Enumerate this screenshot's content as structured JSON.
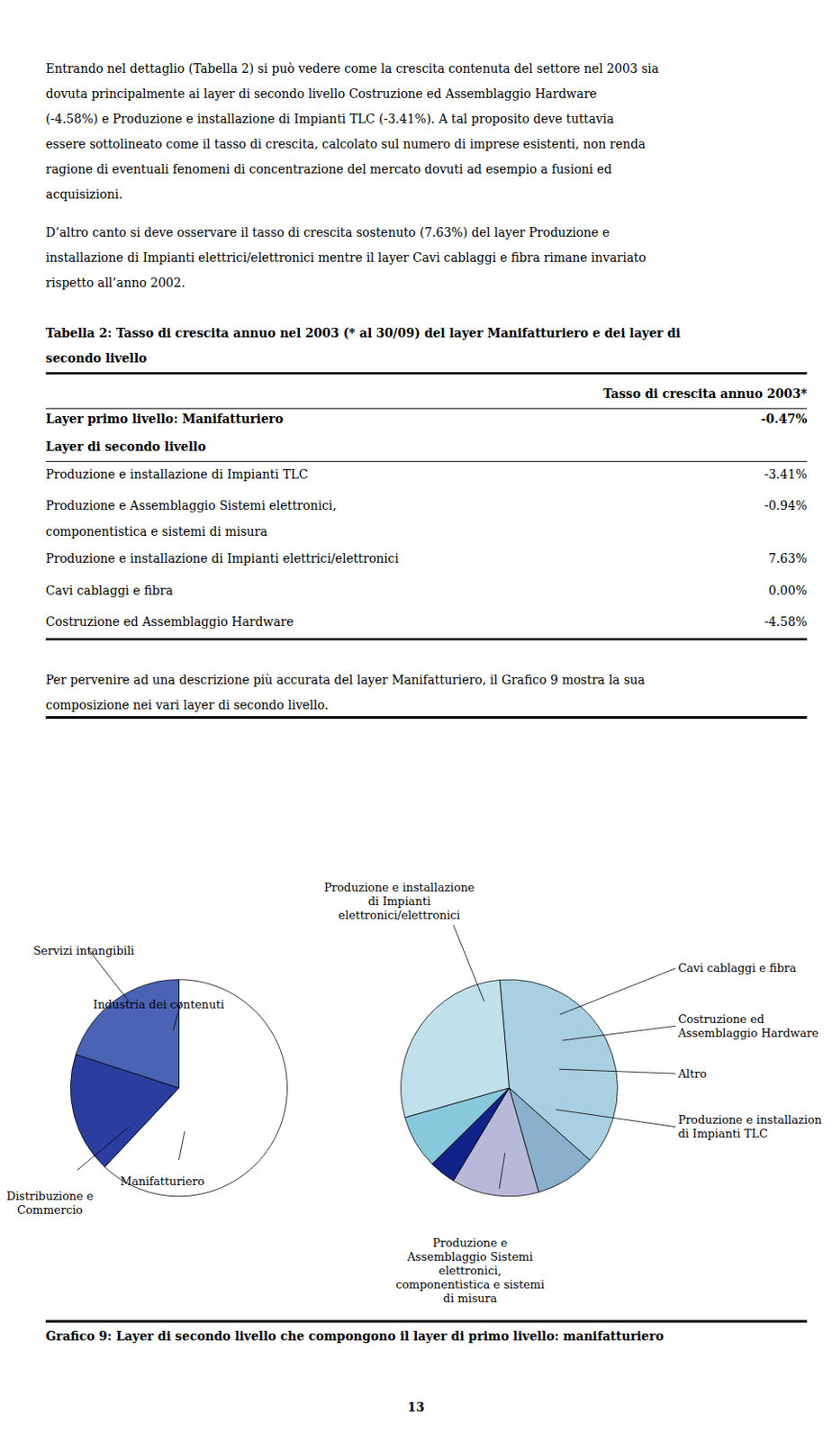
{
  "chart_data": [
    {
      "type": "pie",
      "values": [
        62,
        18,
        20
      ],
      "colors": [
        "#ffffff",
        "#2b3d9e",
        "#4a63b5"
      ],
      "annotations": [
        {
          "type": "paragraph",
          "text": "Entrando nel dettaglio (Tabella 2) si può vedere come la crescita contenuta del settore nel 2003 sia"
        },
        {
          "type": "paragraph",
          "text": "dovuta principalmente ai layer di secondo livello Costruzione ed Assemblaggio Hardware"
        },
        {
          "type": "paragraph",
          "text": "(-4.58%) e Produzione e installazione di Impianti TLC (-3.41%). A tal proposito deve tuttavia"
        },
        {
          "type": "paragraph",
          "text": "essere sottolineato come il tasso di crescita, calcolato sul numero di imprese esistenti, non renda"
        },
        {
          "type": "paragraph",
          "text": "ragione di eventuali fenomeni di concentrazione del mercato dovuti ad esempio a fusioni ed"
        },
        {
          "type": "paragraph",
          "text": "acquisizioni."
        },
        {
          "type": "paragraph",
          "text": "D’altro canto si deve osservare il tasso di crescita sostenuto (7.63%) del layer Produzione e"
        },
        {
          "type": "paragraph",
          "text": "installazione di Impianti elettrici/elettronici mentre il layer Cavi cablaggi e fibra rimane invariato"
        },
        {
          "type": "paragraph",
          "text": "rispetto all’anno 2002."
        },
        {
          "type": "heading",
          "text": "Tabella 2: Tasso di crescita annuo nel 2003 (* al 30/09) del layer Manifatturiero e dei layer di"
        },
        {
          "type": "heading",
          "text": "secondo livello"
        },
        {
          "type": "table_header",
          "text": "Tasso di crescita annuo 2003*"
        },
        {
          "type": "table_group",
          "text": "Layer primo livello: Manifatturiero",
          "label": "-0.47%"
        },
        {
          "type": "table_group",
          "text": "Layer di secondo livello"
        },
        {
          "type": "table_row",
          "text": "Produzione e installazione di Impianti TLC",
          "label": "-3.41%"
        },
        {
          "type": "table_row",
          "text": "Produzione e Assemblaggio Sistemi elettronici,",
          "label": "-0.94%"
        },
        {
          "type": "table_row",
          "text": "componentistica e sistemi di misura"
        },
        {
          "type": "table_row",
          "text": "Produzione e installazione di Impianti elettrici/elettronici",
          "label": "7.63%"
        },
        {
          "type": "table_row",
          "text": "Cavi cablaggi e fibra",
          "label": "0.00%"
        },
        {
          "type": "table_row",
          "text": "Costruzione ed Assemblaggio Hardware",
          "label": "-4.58%"
        },
        {
          "type": "paragraph",
          "text": "Per pervenire ad una descrizione più accurata del layer Manifatturiero, il Grafico 9 mostra la sua"
        },
        {
          "type": "paragraph",
          "text": "composizione nei vari layer di secondo livello."
        },
        {
          "type": "caption",
          "text": "Grafico 9: Layer di secondo livello che compongono il layer di primo livello: manifatturiero"
        },
        {
          "type": "page_number",
          "text": "13"
        },
        {
          "type": "label",
          "text": "Servizi intangibili"
        },
        {
          "type": "label",
          "text": "Industria dei contenuti"
        },
        {
          "type": "label",
          "text": "Manifatturiero"
        },
        {
          "type": "label",
          "text": "Distribuzione e\nCommercio"
        }
      ]
    },
    {
      "type": "pie",
      "values": [
        38,
        9,
        13,
        4,
        8,
        28
      ],
      "colors": [
        "#a8d0e0",
        "#8ab0cc",
        "#b8b8d8",
        "#112288",
        "#88c8dc",
        "#c0e0ec"
      ],
      "annotations": [
        {
          "type": "label",
          "text": "Produzione e installazione\ndi Impianti\nelettronici/elettronici"
        },
        {
          "type": "label",
          "text": "Cavi cablaggi e fibra"
        },
        {
          "type": "label",
          "text": "Costruzione ed\nAssemblaggio Hardware"
        },
        {
          "type": "label",
          "text": "Altro"
        },
        {
          "type": "label",
          "text": "Produzione e installazion\ndi Impianti TLC"
        },
        {
          "type": "label",
          "text": "Produzione e\nAssemblaggio Sistemi\nelettronici,\ncomponentistica e sistemi\ndi misura"
        }
      ]
    }
  ]
}
